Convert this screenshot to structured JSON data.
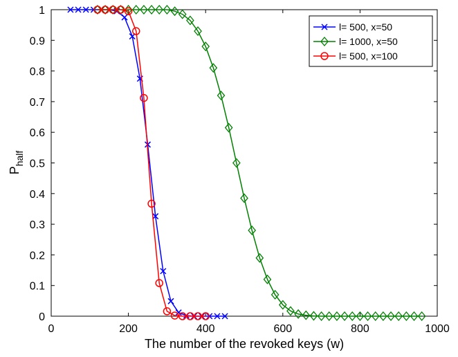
{
  "chart_data": {
    "type": "line",
    "title": "",
    "xlabel": "The number of the revoked keys (w)",
    "ylabel_main": "P",
    "ylabel_sub": "half",
    "xlim": [
      0,
      1000
    ],
    "ylim": [
      0,
      1
    ],
    "xticks": [
      "0",
      "200",
      "400",
      "600",
      "800",
      "1000"
    ],
    "yticks": [
      "0",
      "0.1",
      "0.2",
      "0.3",
      "0.4",
      "0.5",
      "0.6",
      "0.7",
      "0.8",
      "0.9",
      "1"
    ],
    "grid": false,
    "legend_position": "top-right",
    "series": [
      {
        "name": "l= 500, x=50",
        "color": "#0000ff",
        "marker": "x",
        "x": [
          50,
          70,
          90,
          110,
          130,
          150,
          170,
          190,
          210,
          230,
          250,
          270,
          290,
          310,
          330,
          350,
          370,
          390,
          410,
          430,
          450
        ],
        "y": [
          1,
          1,
          1,
          1,
          1,
          1,
          0.995,
          0.975,
          0.913,
          0.775,
          0.56,
          0.326,
          0.147,
          0.049,
          0.012,
          0.002,
          0,
          0,
          0,
          0,
          0
        ]
      },
      {
        "name": "l= 1000, x=50",
        "color": "#008000",
        "marker": "diamond",
        "x": [
          120,
          140,
          160,
          180,
          200,
          220,
          240,
          260,
          280,
          300,
          320,
          340,
          360,
          380,
          400,
          420,
          440,
          460,
          480,
          500,
          520,
          540,
          560,
          580,
          600,
          620,
          640,
          660,
          680,
          700,
          720,
          740,
          760,
          780,
          800,
          820,
          840,
          860,
          880,
          900,
          920,
          940,
          960
        ],
        "y": [
          1,
          1,
          1,
          1,
          1,
          1,
          1,
          1,
          1,
          1,
          0.995,
          0.985,
          0.965,
          0.93,
          0.88,
          0.81,
          0.72,
          0.615,
          0.5,
          0.385,
          0.28,
          0.19,
          0.12,
          0.07,
          0.037,
          0.017,
          0.007,
          0.003,
          0.001,
          0,
          0,
          0,
          0,
          0,
          0,
          0,
          0,
          0,
          0,
          0,
          0,
          0,
          0
        ]
      },
      {
        "name": "l= 500, x=100",
        "color": "#ff0000",
        "marker": "circle",
        "x": [
          120,
          140,
          160,
          180,
          200,
          220,
          240,
          260,
          280,
          300,
          320,
          340,
          360,
          380,
          400
        ],
        "y": [
          1,
          1,
          1,
          1,
          0.995,
          0.93,
          0.712,
          0.367,
          0.108,
          0.016,
          0.002,
          0,
          0,
          0,
          0
        ]
      }
    ]
  }
}
